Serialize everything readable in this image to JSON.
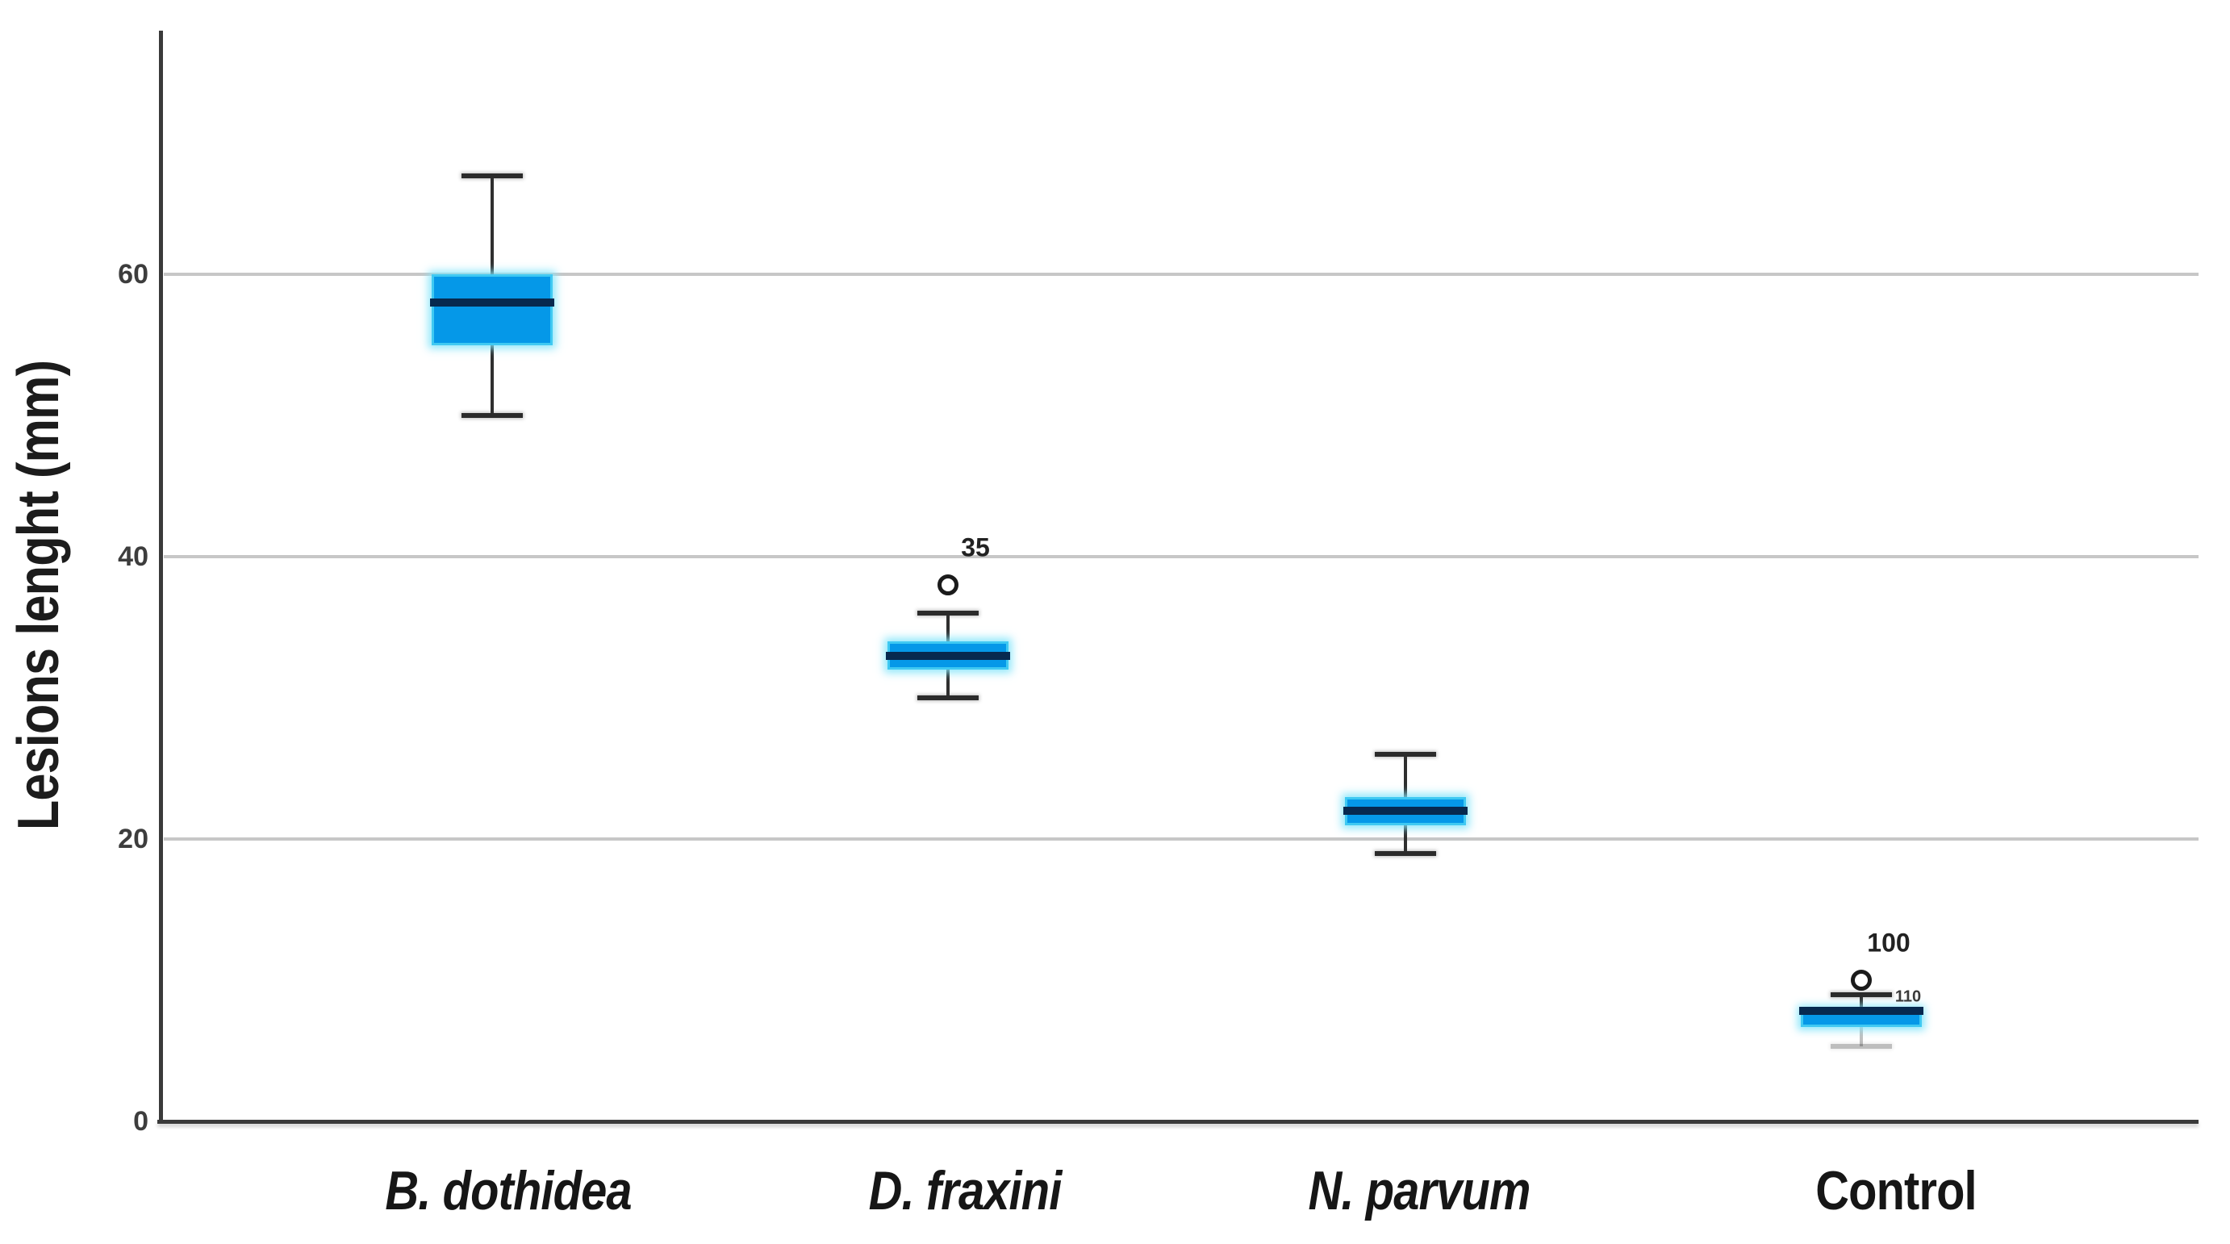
{
  "chart_data": {
    "type": "boxplot",
    "title": "",
    "xlabel": "",
    "ylabel": "Lesions lenght (mm)",
    "ylim": [
      0,
      77
    ],
    "yticks": [
      "0",
      "20",
      "40",
      "60"
    ],
    "ytick_values": [
      0,
      20,
      40,
      60
    ],
    "grid": "horizontal gridlines at y = 20, 40, 60; no vertical gridlines",
    "legend": "none",
    "categories": [
      "B. dothidea",
      "D. fraxini",
      "N. parvum",
      "Control"
    ],
    "series": [
      {
        "category": "B. dothidea",
        "italic": true,
        "whisker_low": 50,
        "q1": 55,
        "median": 58,
        "q3": 60,
        "whisker_high": 67,
        "outliers": []
      },
      {
        "category": "D. fraxini",
        "italic": true,
        "whisker_low": 30,
        "q1": 32,
        "median": 33,
        "q3": 34,
        "whisker_high": 36,
        "outliers": [
          {
            "value": 38,
            "case_label": "35"
          }
        ]
      },
      {
        "category": "N. parvum",
        "italic": true,
        "whisker_low": 19,
        "q1": 21,
        "median": 22,
        "q3": 23,
        "whisker_high": 26,
        "outliers": []
      },
      {
        "category": "Control",
        "italic": false,
        "whisker_low": 5.3,
        "q1": 6.7,
        "median": 8,
        "q3": 8,
        "whisker_high": 9,
        "outliers": [
          {
            "value": 10,
            "case_label": "100"
          }
        ],
        "extra_case_label": "110",
        "lower_whisker_faint": true
      }
    ],
    "colors": {
      "box_fill": "#0598e8",
      "box_edge_glow": "#3fc9f2",
      "median_line": "#07294f",
      "whisker": "#2f2f2f",
      "gridline": "#c7c7c7",
      "axis": "#3a3a3a",
      "tick_text": "#3d3d3d",
      "label_text": "#161616"
    }
  }
}
